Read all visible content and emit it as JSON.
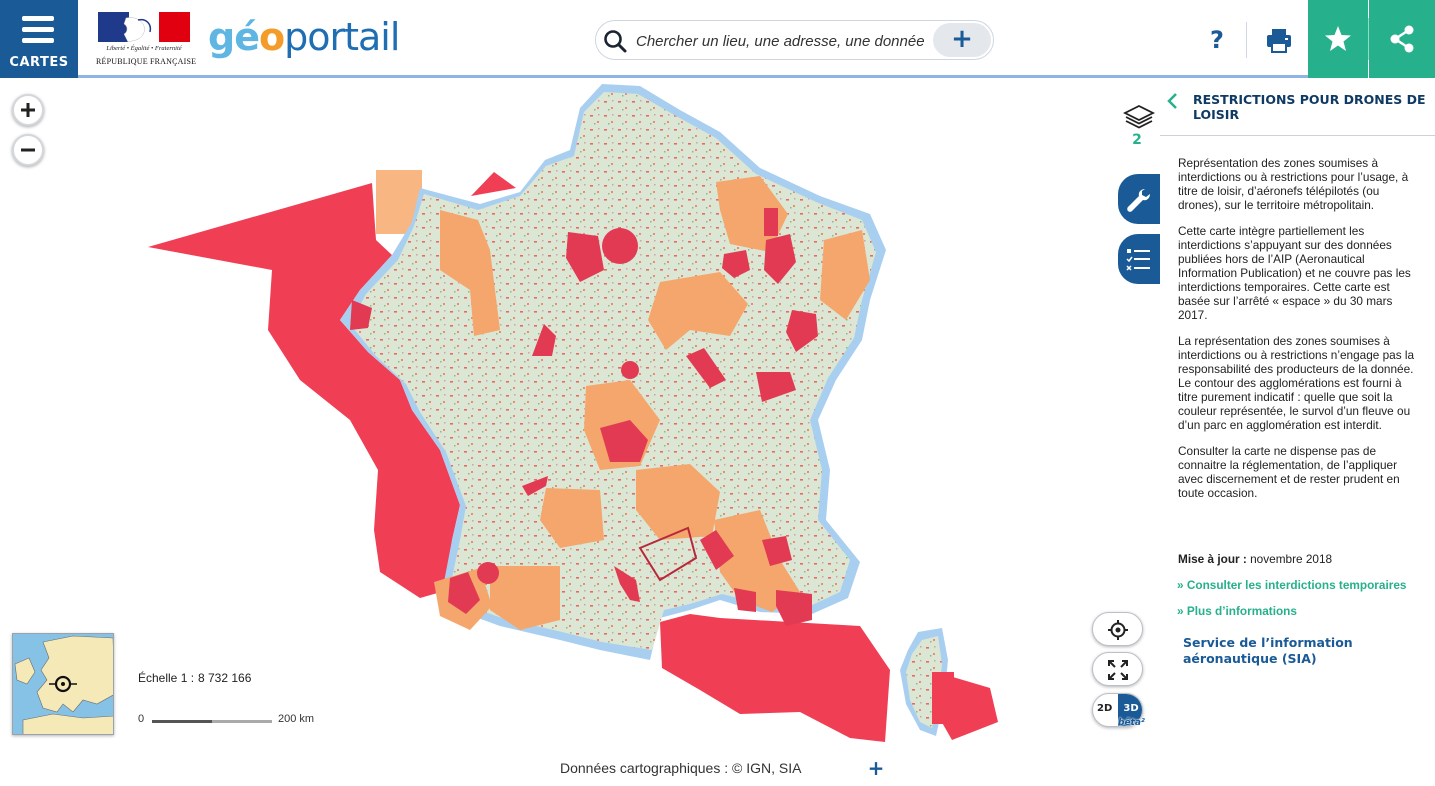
{
  "header": {
    "menu_label": "CARTES",
    "rf_motto": "Liberté • Égalité • Fraternité",
    "rf_name": "RÉPUBLIQUE FRANÇAISE",
    "brand_geo": "gé",
    "brand_o": "o",
    "brand_portail": "portail",
    "search_placeholder": "Chercher un lieu, une adresse, une donnée",
    "search_plus": "+",
    "help_label": "?"
  },
  "map": {
    "zoom_in": "+",
    "zoom_out": "−",
    "scale_label": "Échelle 1 :",
    "scale_value": "8 732 166",
    "scale_zero": "0",
    "scale_max": "200 km",
    "toggle_2d": "2D",
    "toggle_3d": "3D",
    "beta": "bêta²",
    "colors": {
      "restriction_red": "#f03e54",
      "restriction_orange": "#f5a66c",
      "land": "#d9e5d3",
      "coast": "#a9cff0"
    }
  },
  "panel": {
    "layers_count": "2",
    "title": "RESTRICTIONS POUR DRONES DE LOISIR",
    "paragraphs": [
      "Représentation des zones soumises à interdictions ou à restrictions pour l’usage, à titre de loisir, d’aéronefs télépilotés (ou drones), sur le territoire métropolitain.",
      "Cette carte intègre partiellement les interdictions s’appuyant sur des données publiées hors de l’AIP (Aeronautical Information Publication) et ne couvre pas les interdictions temporaires. Cette carte est basée sur l’arrêté « espace » du 30 mars 2017.",
      "La représentation des zones soumises à interdictions ou à restrictions n’engage pas la responsabilité des producteurs de la donnée. Le contour des agglomérations est fourni à titre purement indicatif : quelle que soit la couleur représentée, le survol d’un fleuve ou d’un parc en agglomération est interdit.",
      "Consulter la carte ne dispense pas de connaitre la réglementation, de l’appliquer avec discernement et de rester prudent en toute occasion."
    ],
    "update_label": "Mise à jour :",
    "update_value": "novembre 2018",
    "link_temporary": "» Consulter les interdictions temporaires",
    "link_more": "» Plus d’informations",
    "sia_link": "Service de l’information aéronautique (SIA)"
  },
  "footer": {
    "attribution": "Données cartographiques : ©  IGN,  SIA",
    "plus": "+"
  }
}
